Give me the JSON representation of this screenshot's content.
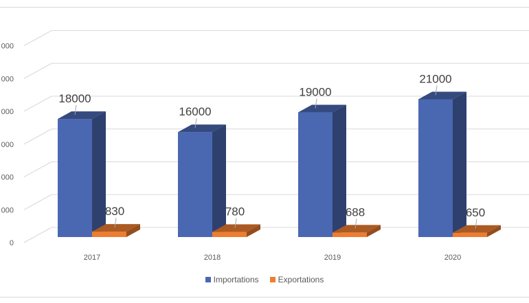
{
  "chart_data": {
    "type": "bar",
    "categories": [
      "2017",
      "2018",
      "2019",
      "2020"
    ],
    "series": [
      {
        "name": "Importations",
        "values": [
          18000,
          16000,
          19000,
          21000
        ],
        "color": "#4a67b1"
      },
      {
        "name": "Exportations",
        "values": [
          830,
          780,
          688,
          650
        ],
        "color": "#ed7d31"
      }
    ],
    "data_labels": {
      "Importations": [
        "18000",
        "16000",
        "19000",
        "21000"
      ],
      "Exportations": [
        "830",
        "780",
        "688",
        "650"
      ]
    },
    "y_ticks_visible": [
      "0",
      "000",
      "000",
      "000",
      "000",
      "000",
      "000"
    ],
    "ylim": [
      0,
      30000
    ],
    "grid": true,
    "legend_position": "bottom",
    "style": "3d-clustered-column"
  }
}
